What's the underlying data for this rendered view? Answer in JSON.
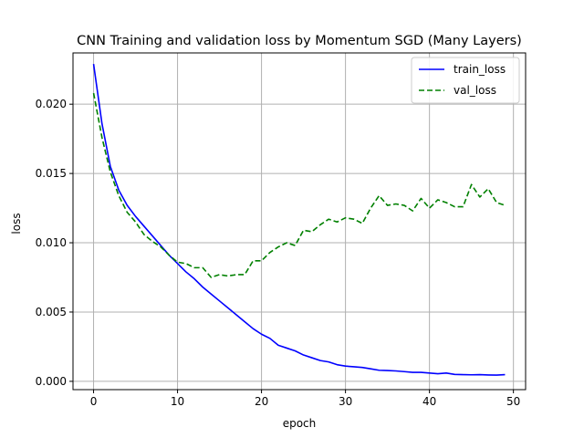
{
  "chart_data": {
    "type": "line",
    "title": "CNN Training and validation loss by Momentum SGD (Many Layers)",
    "xlabel": "epoch",
    "ylabel": "loss",
    "xlim": [
      -2.45,
      51.45
    ],
    "ylim": [
      -0.0006,
      0.0237
    ],
    "xticks": [
      0,
      10,
      20,
      30,
      40,
      50
    ],
    "xtick_labels": [
      "0",
      "10",
      "20",
      "30",
      "40",
      "50"
    ],
    "yticks": [
      0,
      0.005,
      0.01,
      0.015,
      0.02
    ],
    "ytick_labels": [
      "0.000",
      "0.005",
      "0.010",
      "0.015",
      "0.020"
    ],
    "grid": true,
    "legend_position": "top-right",
    "x": [
      0,
      1,
      2,
      3,
      4,
      5,
      6,
      7,
      8,
      9,
      10,
      11,
      12,
      13,
      14,
      15,
      16,
      17,
      18,
      19,
      20,
      21,
      22,
      23,
      24,
      25,
      26,
      27,
      28,
      29,
      30,
      31,
      32,
      33,
      34,
      35,
      36,
      37,
      38,
      39,
      40,
      41,
      42,
      43,
      44,
      45,
      46,
      47,
      48,
      49
    ],
    "series": [
      {
        "name": "train_loss",
        "color": "#0000ff",
        "dash": "solid",
        "values": [
          0.0229,
          0.0186,
          0.0155,
          0.0138,
          0.0127,
          0.0119,
          0.0112,
          0.0105,
          0.0098,
          0.0091,
          0.0085,
          0.0079,
          0.0074,
          0.0068,
          0.0063,
          0.0058,
          0.0053,
          0.0048,
          0.0043,
          0.0038,
          0.0034,
          0.0031,
          0.0026,
          0.0024,
          0.0022,
          0.0019,
          0.0017,
          0.0015,
          0.0014,
          0.0012,
          0.0011,
          0.00105,
          0.001,
          0.0009,
          0.0008,
          0.00078,
          0.00075,
          0.0007,
          0.00065,
          0.00065,
          0.0006,
          0.00055,
          0.0006,
          0.0005,
          0.00048,
          0.00047,
          0.00048,
          0.00046,
          0.00045,
          0.00048
        ]
      },
      {
        "name": "val_loss",
        "color": "#008000",
        "dash": "dashed",
        "values": [
          0.0208,
          0.0176,
          0.0151,
          0.0134,
          0.0122,
          0.0115,
          0.0106,
          0.0101,
          0.0097,
          0.0091,
          0.0086,
          0.0085,
          0.0082,
          0.0082,
          0.0075,
          0.0077,
          0.0076,
          0.0077,
          0.0077,
          0.0087,
          0.0087,
          0.0093,
          0.0097,
          0.01,
          0.0098,
          0.0109,
          0.0108,
          0.0113,
          0.0117,
          0.0115,
          0.0118,
          0.0117,
          0.0114,
          0.0125,
          0.0134,
          0.0127,
          0.0128,
          0.0127,
          0.0123,
          0.0132,
          0.0125,
          0.0131,
          0.0129,
          0.0126,
          0.0126,
          0.0142,
          0.0133,
          0.0139,
          0.0129,
          0.0127
        ]
      }
    ]
  }
}
